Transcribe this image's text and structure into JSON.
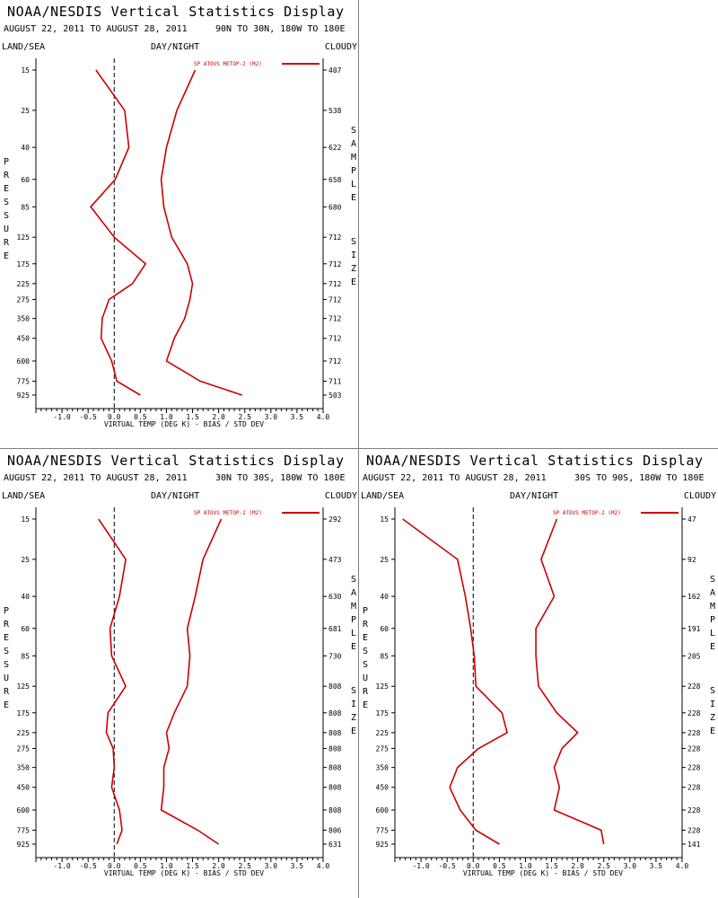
{
  "common": {
    "title": "NOAA/NESDIS Vertical Statistics Display",
    "date_range": "AUGUST 22, 2011 TO AUGUST 28, 2011",
    "categories": [
      "LAND/SEA",
      "DAY/NIGHT",
      "CLOUDY"
    ],
    "y_axis_label": "PRESSURE",
    "right_axis_label": [
      "SAMPLE",
      "SIZE"
    ],
    "x_axis_label": "VIRTUAL TEMP (DEG K) - BIAS / STD DEV",
    "legend_label": "SP ATOVS METOP-2 (M2)",
    "line_color": "#cc0000"
  },
  "chart_data": [
    {
      "type": "line",
      "region": "90N TO 30N, 180W TO 180E",
      "pressure_levels": [
        15,
        25,
        40,
        60,
        85,
        125,
        175,
        225,
        275,
        350,
        450,
        600,
        775,
        925
      ],
      "sample_size": [
        "407",
        "538",
        "622",
        "658",
        "680",
        "712",
        "712",
        "712",
        "712",
        "712",
        "712",
        "712",
        "711",
        "503"
      ],
      "xlim": [
        -1.5,
        4.0
      ],
      "x_ticks": [
        "-1.0",
        "-0.5",
        "0.0",
        "0.5",
        "1.0",
        "1.5",
        "2.0",
        "2.5",
        "3.0",
        "3.5",
        "4.0"
      ],
      "series": [
        {
          "name": "bias",
          "values": [
            -0.35,
            0.2,
            0.28,
            0.02,
            -0.45,
            0.0,
            0.6,
            0.35,
            -0.1,
            -0.23,
            -0.25,
            -0.05,
            0.05,
            0.5
          ]
        },
        {
          "name": "std dev",
          "values": [
            1.55,
            1.2,
            1.0,
            0.9,
            0.95,
            1.1,
            1.4,
            1.5,
            1.45,
            1.35,
            1.15,
            1.0,
            1.65,
            2.45
          ]
        }
      ]
    },
    {
      "type": "line",
      "region": "30N TO 30S, 180W TO 180E",
      "pressure_levels": [
        15,
        25,
        40,
        60,
        85,
        125,
        175,
        225,
        275,
        350,
        450,
        600,
        775,
        925
      ],
      "sample_size": [
        "292",
        "473",
        "630",
        "681",
        "730",
        "808",
        "808",
        "808",
        "808",
        "808",
        "808",
        "808",
        "806",
        "631"
      ],
      "xlim": [
        -1.5,
        4.0
      ],
      "x_ticks": [
        "-1.0",
        "-0.5",
        "0.0",
        "0.5",
        "1.0",
        "1.5",
        "2.0",
        "2.5",
        "3.0",
        "3.5",
        "4.0"
      ],
      "series": [
        {
          "name": "bias",
          "values": [
            -0.3,
            0.22,
            0.1,
            -0.08,
            -0.05,
            0.22,
            -0.12,
            -0.15,
            -0.02,
            0.0,
            -0.05,
            0.1,
            0.15,
            0.05
          ]
        },
        {
          "name": "std dev",
          "values": [
            2.05,
            1.7,
            1.55,
            1.4,
            1.45,
            1.4,
            1.15,
            1.0,
            1.05,
            0.95,
            0.95,
            0.9,
            1.6,
            2.0
          ]
        }
      ]
    },
    {
      "type": "line",
      "region": "30S TO 90S, 180W TO 180E",
      "pressure_levels": [
        15,
        25,
        40,
        60,
        85,
        125,
        175,
        225,
        275,
        350,
        450,
        600,
        775,
        925
      ],
      "sample_size": [
        "47",
        "92",
        "162",
        "191",
        "205",
        "228",
        "228",
        "228",
        "228",
        "228",
        "228",
        "228",
        "228",
        "141"
      ],
      "xlim": [
        -1.5,
        4.0
      ],
      "x_ticks": [
        "-1.0",
        "-0.5",
        "0.0",
        "0.5",
        "1.0",
        "1.5",
        "2.0",
        "2.5",
        "3.0",
        "3.5",
        "4.0"
      ],
      "series": [
        {
          "name": "bias",
          "values": [
            -1.35,
            -0.3,
            -0.15,
            -0.05,
            0.02,
            0.05,
            0.55,
            0.65,
            0.1,
            -0.3,
            -0.45,
            -0.25,
            0.05,
            0.5
          ]
        },
        {
          "name": "std dev",
          "values": [
            1.6,
            1.3,
            1.55,
            1.2,
            1.2,
            1.25,
            1.6,
            2.0,
            1.7,
            1.55,
            1.65,
            1.55,
            2.45,
            2.5
          ]
        }
      ]
    }
  ]
}
